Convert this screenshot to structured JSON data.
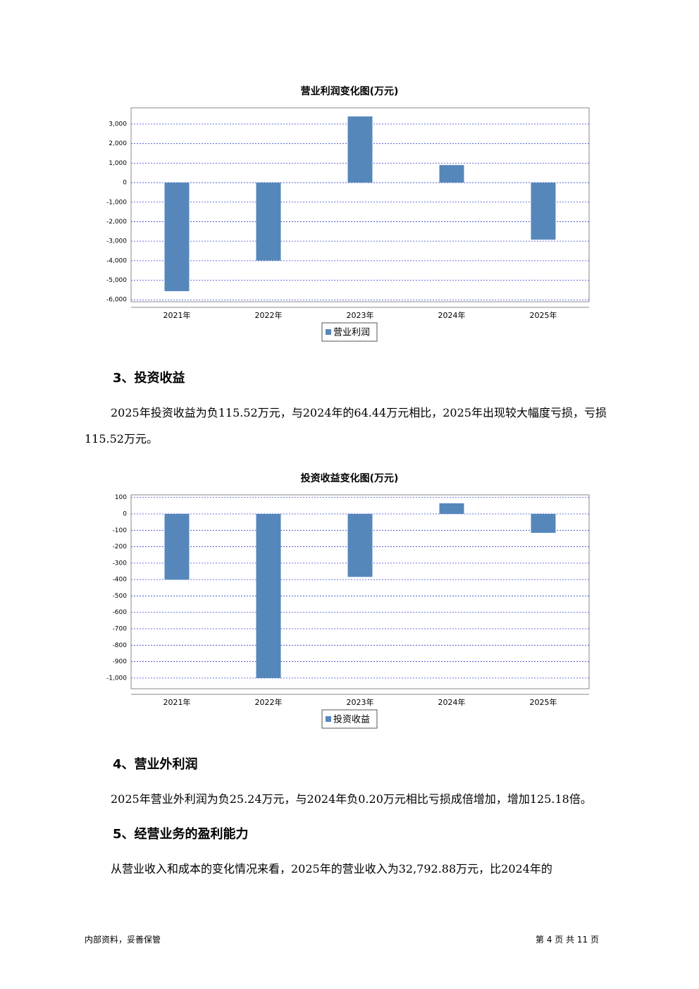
{
  "chart_data": [
    {
      "type": "bar",
      "title": "营业利润变化图(万元)",
      "categories": [
        "2021年",
        "2022年",
        "2023年",
        "2024年",
        "2025年"
      ],
      "series": [
        {
          "name": "营业利润",
          "color": "#5587bb",
          "values": [
            -5560,
            -3990,
            3390,
            900,
            -2920
          ]
        }
      ],
      "ylim": [
        -6100,
        3830
      ],
      "yticks": [
        {
          "value": 3000,
          "label": "3,000"
        },
        {
          "value": 2000,
          "label": "2,000"
        },
        {
          "value": 1000,
          "label": "1,000"
        },
        0,
        {
          "value": -1000,
          "label": "-1,000"
        },
        {
          "value": -2000,
          "label": "-2,000"
        },
        {
          "value": -3000,
          "label": "-3,000"
        },
        {
          "value": -4000,
          "label": "-4,000"
        },
        {
          "value": -5000,
          "label": "-5,000"
        },
        {
          "value": -6000,
          "label": "-6,000"
        }
      ],
      "grid": true,
      "legend": "bottom"
    },
    {
      "type": "bar",
      "title": "投资收益变化图(万元)",
      "categories": [
        "2021年",
        "2022年",
        "2023年",
        "2024年",
        "2025年"
      ],
      "series": [
        {
          "name": "投资收益",
          "color": "#5587bb",
          "values": [
            -401,
            -1000,
            -384,
            64.44,
            -115.52
          ]
        }
      ],
      "ylim": [
        -1065,
        116
      ],
      "yticks": [
        100,
        0,
        -100,
        -200,
        -300,
        -400,
        -500,
        -600,
        -700,
        -800,
        -900,
        {
          "value": -1000,
          "label": "-1,000"
        }
      ],
      "grid": true,
      "legend": "bottom"
    }
  ],
  "sections": [
    {
      "heading": "3、投资收益",
      "paragraph": "2025年投资收益为负115.52万元，与2024年的64.44万元相比，2025年出现较大幅度亏损，亏损115.52万元。"
    },
    {
      "heading": "4、营业外利润",
      "paragraph": "2025年营业外利润为负25.24万元，与2024年负0.20万元相比亏损成倍增加，增加125.18倍。"
    },
    {
      "heading": "5、经营业务的盈利能力",
      "paragraph": "从营业收入和成本的变化情况来看，2025年的营业收入为32,792.88万元，比2024年的"
    }
  ],
  "footer": {
    "left": "内部资料，妥善保管",
    "right": "第 4 页 共 11 页"
  }
}
